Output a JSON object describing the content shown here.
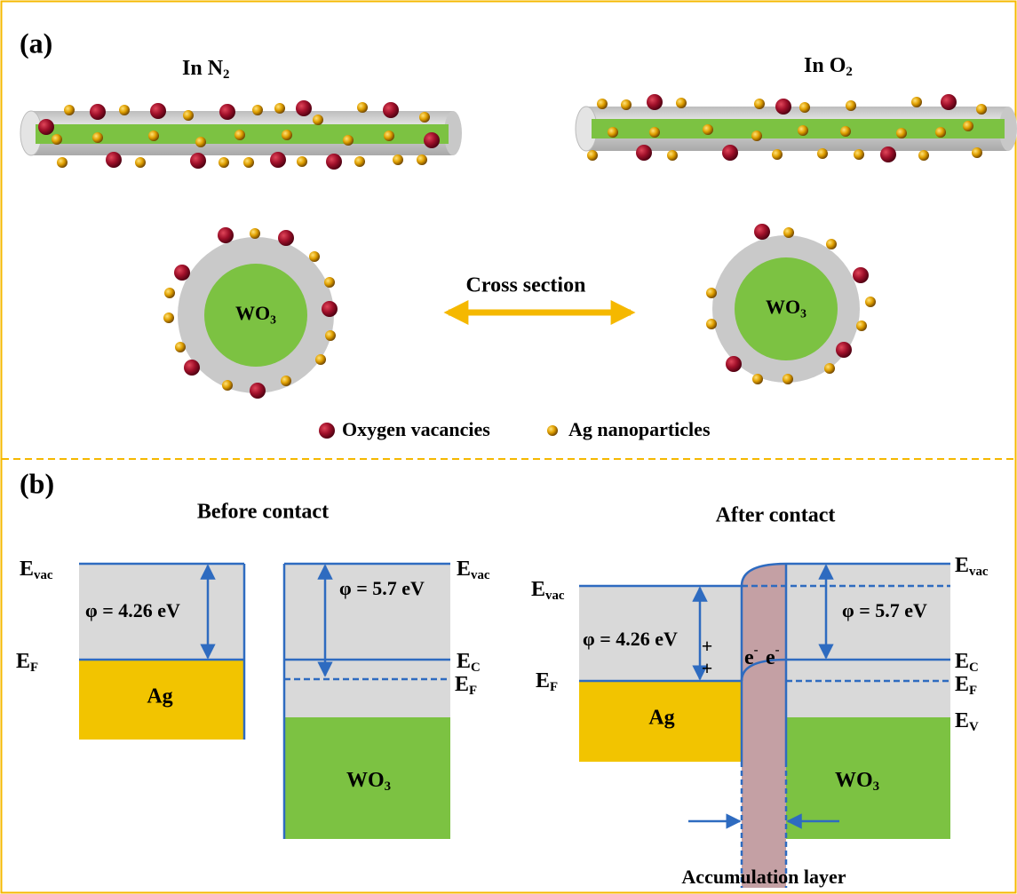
{
  "panel_a": {
    "label": "(a)",
    "left_title": {
      "base": "In N",
      "sub": "2"
    },
    "right_title": {
      "base": "In O",
      "sub": "2"
    },
    "cross_section": "Cross section",
    "left_core": {
      "base": "WO",
      "sub": "3"
    },
    "right_core": {
      "base": "WO",
      "sub": "3"
    },
    "legend": [
      "Oxygen vacancies",
      "Ag nanoparticles"
    ]
  },
  "panel_b": {
    "label": "(b)",
    "before": {
      "title": "Before contact",
      "ag": {
        "evac": {
          "base": "E",
          "sub": "vac"
        },
        "ef": {
          "base": "E",
          "sub": "F"
        },
        "phi": "φ = 4.26 eV",
        "material": "Ag"
      },
      "wo3": {
        "evac": {
          "base": "E",
          "sub": "vac"
        },
        "ec": {
          "base": "E",
          "sub": "C"
        },
        "ef": {
          "base": "E",
          "sub": "F"
        },
        "phi": "φ = 5.7 eV",
        "material": {
          "base": "WO",
          "sub": "3"
        }
      }
    },
    "after": {
      "title": "After contact",
      "ag": {
        "evac": {
          "base": "E",
          "sub": "vac"
        },
        "ef": {
          "base": "E",
          "sub": "F"
        },
        "phi": "φ = 4.26 eV",
        "material": "Ag"
      },
      "wo3": {
        "evac": {
          "base": "E",
          "sub": "vac"
        },
        "ec": {
          "base": "E",
          "sub": "C"
        },
        "ef": {
          "base": "E",
          "sub": "F"
        },
        "ev": {
          "base": "E",
          "sub": "V"
        },
        "phi": "φ = 5.7 eV",
        "material": {
          "base": "WO",
          "sub": "3"
        }
      },
      "holes": [
        "+",
        "+"
      ],
      "electrons": [
        {
          "base": "e",
          "sup": "-"
        },
        {
          "base": "e",
          "sup": "-"
        }
      ],
      "layer": "Accumulation layer"
    }
  }
}
